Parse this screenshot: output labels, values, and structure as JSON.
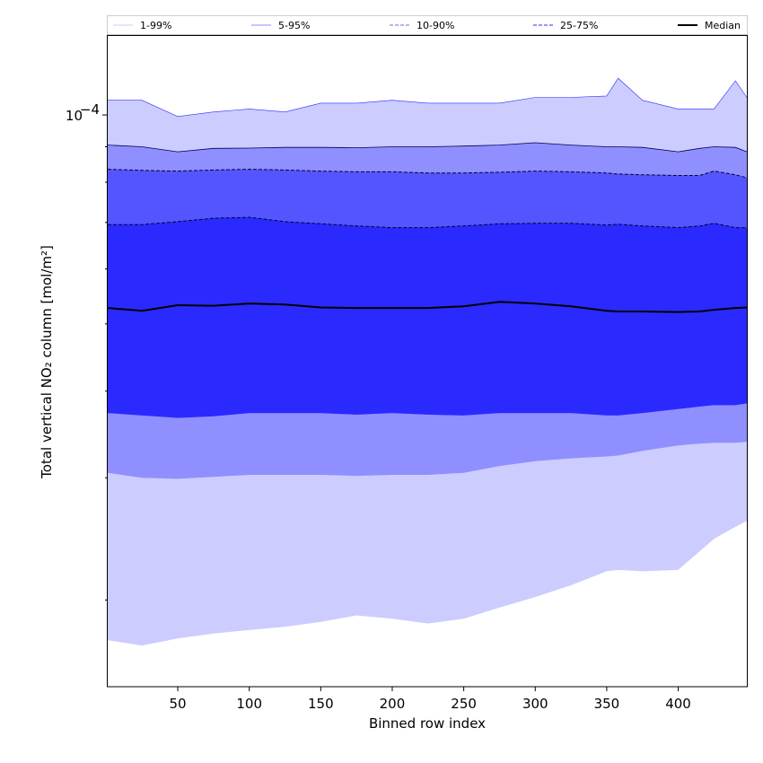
{
  "chart_data": {
    "type": "area",
    "xlabel": "Binned row index",
    "ylabel": "Total vertical NO₂ column [mol/m²]",
    "x_ticks": [
      50,
      100,
      150,
      200,
      250,
      300,
      350,
      400
    ],
    "xlim": [
      1,
      448
    ],
    "y_scale": "log",
    "ylim": [
      1.5e-05,
      0.00013
    ],
    "y_tick_labels": [
      {
        "value": 0.0001,
        "base": "10",
        "exponent": "−4"
      }
    ],
    "legend_position": "top",
    "legend": [
      "1-99%",
      "5-95%",
      "10-90%",
      "25-75%",
      "Median"
    ],
    "x": [
      1,
      25,
      50,
      75,
      100,
      125,
      150,
      175,
      200,
      225,
      250,
      275,
      300,
      325,
      350,
      358,
      375,
      400,
      415,
      425,
      440,
      448
    ],
    "series": [
      {
        "name": "1-99%",
        "color": "#ccccff",
        "lower": [
          1.75e-05,
          1.72e-05,
          1.76e-05,
          1.79e-05,
          1.81e-05,
          1.83e-05,
          1.86e-05,
          1.9e-05,
          1.88e-05,
          1.85e-05,
          1.88e-05,
          1.95e-05,
          2.02e-05,
          2.1e-05,
          2.2e-05,
          2.21e-05,
          2.2e-05,
          2.21e-05,
          2.35e-05,
          2.45e-05,
          2.55e-05,
          2.6e-05
        ],
        "upper": [
          0.000105,
          0.000105,
          9.95e-05,
          0.000101,
          0.000102,
          0.000101,
          0.000104,
          0.000104,
          0.000105,
          0.000104,
          0.000104,
          0.000104,
          0.000106,
          0.000106,
          0.0001065,
          0.000113,
          0.000105,
          0.000102,
          0.000102,
          0.000102,
          0.000112,
          0.000106
        ]
      },
      {
        "name": "5-95%",
        "color": "#8f8fff",
        "lower": [
          3.05e-05,
          3e-05,
          2.99e-05,
          3.01e-05,
          3.03e-05,
          3.03e-05,
          3.03e-05,
          3.02e-05,
          3.03e-05,
          3.03e-05,
          3.05e-05,
          3.12e-05,
          3.17e-05,
          3.2e-05,
          3.22e-05,
          3.23e-05,
          3.28e-05,
          3.34e-05,
          3.36e-05,
          3.37e-05,
          3.37e-05,
          3.38e-05
        ],
        "upper": [
          9.05e-05,
          9e-05,
          8.85e-05,
          8.95e-05,
          8.96e-05,
          8.98e-05,
          8.98e-05,
          8.97e-05,
          9e-05,
          9e-05,
          9.02e-05,
          9.05e-05,
          9.12e-05,
          9.05e-05,
          9e-05,
          9e-05,
          8.98e-05,
          8.85e-05,
          8.95e-05,
          9e-05,
          8.98e-05,
          8.85e-05
        ]
      },
      {
        "name": "10-90%",
        "color": "#5555ff",
        "lower": [
          3.72e-05,
          3.69e-05,
          3.66e-05,
          3.68e-05,
          3.72e-05,
          3.72e-05,
          3.72e-05,
          3.7e-05,
          3.72e-05,
          3.7e-05,
          3.69e-05,
          3.72e-05,
          3.72e-05,
          3.72e-05,
          3.69e-05,
          3.69e-05,
          3.72e-05,
          3.77e-05,
          3.8e-05,
          3.82e-05,
          3.82e-05,
          3.84e-05
        ],
        "upper": [
          8.35e-05,
          8.32e-05,
          8.3e-05,
          8.33e-05,
          8.35e-05,
          8.33e-05,
          8.3e-05,
          8.28e-05,
          8.28e-05,
          8.25e-05,
          8.25e-05,
          8.27e-05,
          8.3e-05,
          8.28e-05,
          8.25e-05,
          8.22e-05,
          8.2e-05,
          8.18e-05,
          8.18e-05,
          8.3e-05,
          8.2e-05,
          8.12e-05
        ]
      },
      {
        "name": "25-75%",
        "color": "#2a2aff",
        "lower": [
          3.72e-05,
          3.69e-05,
          3.66e-05,
          3.68e-05,
          3.72e-05,
          3.72e-05,
          3.72e-05,
          3.7e-05,
          3.72e-05,
          3.7e-05,
          3.69e-05,
          3.72e-05,
          3.72e-05,
          3.72e-05,
          3.69e-05,
          3.69e-05,
          3.72e-05,
          3.77e-05,
          3.8e-05,
          3.82e-05,
          3.82e-05,
          3.84e-05
        ],
        "upper": [
          6.95e-05,
          6.95e-05,
          7.02e-05,
          7.1e-05,
          7.12e-05,
          7.02e-05,
          6.97e-05,
          6.92e-05,
          6.88e-05,
          6.88e-05,
          6.92e-05,
          6.97e-05,
          6.98e-05,
          6.98e-05,
          6.94e-05,
          6.96e-05,
          6.92e-05,
          6.88e-05,
          6.92e-05,
          6.98e-05,
          6.88e-05,
          6.88e-05
        ]
      },
      {
        "name": "Median",
        "color": "#000000",
        "values": [
          5.27e-05,
          5.22e-05,
          5.32e-05,
          5.31e-05,
          5.35e-05,
          5.33e-05,
          5.28e-05,
          5.27e-05,
          5.27e-05,
          5.27e-05,
          5.3e-05,
          5.38e-05,
          5.35e-05,
          5.3e-05,
          5.22e-05,
          5.21e-05,
          5.21e-05,
          5.2e-05,
          5.21e-05,
          5.24e-05,
          5.27e-05,
          5.28e-05
        ]
      }
    ]
  }
}
